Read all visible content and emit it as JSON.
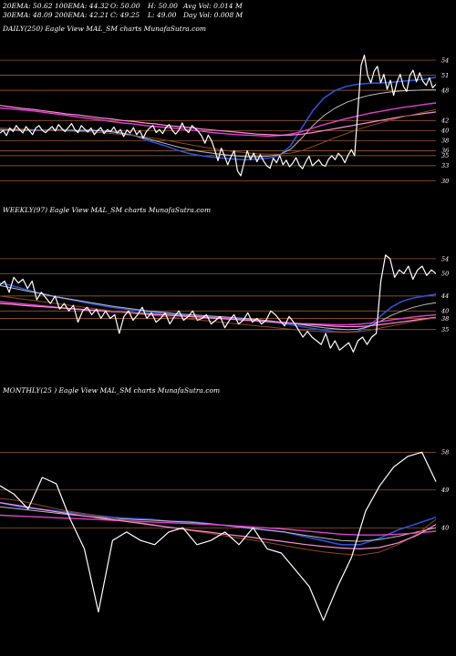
{
  "header": {
    "row1": [
      {
        "key": "ema20",
        "text": "20EMA: 50.62"
      },
      {
        "key": "ema100",
        "text": "100EMA: 44.32"
      },
      {
        "key": "open",
        "text": "O: 50.00"
      },
      {
        "key": "high",
        "text": "H: 50.00"
      },
      {
        "key": "avgvol",
        "text": "Avg Vol: 0.014  M"
      }
    ],
    "row2": [
      {
        "key": "ema30",
        "text": "30EMA: 48.09"
      },
      {
        "key": "ema200",
        "text": "200EMA: 42.21"
      },
      {
        "key": "close",
        "text": "C: 49.25"
      },
      {
        "key": "low",
        "text": "L: 49.00"
      },
      {
        "key": "dayvol",
        "text": "Day Vol: 0.008  M"
      }
    ]
  },
  "colors": {
    "background": "#000000",
    "price": "#ffffff",
    "ema_blue": "#2a52d6",
    "ema_magenta": "#e040d0",
    "ema_pink": "#ff8ad8",
    "ema_gray": "#bbbbbb",
    "ema_brown": "#8b4a1c",
    "grid_orange": "#b8662a"
  },
  "chart_data": [
    {
      "type": "line",
      "title": "DAILY(250) Eagle  View  MAL_SM charts MunafaSutra.com",
      "price_levels": [
        54,
        51,
        48,
        42,
        40,
        38,
        36,
        35,
        33,
        30
      ],
      "ylim": [
        27,
        58
      ],
      "series": [
        {
          "name": "price",
          "color": "#ffffff",
          "values": [
            39.5,
            40,
            39,
            40.5,
            39.8,
            41,
            40.2,
            39.5,
            40.8,
            40,
            39.2,
            40.5,
            41,
            40,
            39.6,
            40.2,
            40.8,
            39.9,
            41.2,
            40.4,
            39.8,
            40.6,
            41.4,
            40.2,
            39.6,
            41,
            40.3,
            39.7,
            40.5,
            39.2,
            40,
            40.6,
            39.4,
            40.2,
            39.8,
            40.7,
            39.5,
            40.2,
            38.8,
            40.1,
            39.5,
            40.6,
            39.2,
            40,
            38.5,
            39.8,
            40.5,
            41,
            39.6,
            40.2,
            39.4,
            40.6,
            41.2,
            40,
            39.3,
            40.1,
            41.5,
            40.2,
            39.6,
            41,
            40.4,
            39.8,
            38.9,
            37.5,
            39.1,
            38,
            36.2,
            34,
            36.5,
            35,
            33.2,
            34.8,
            36,
            32,
            31,
            33.5,
            36,
            34.2,
            35.5,
            33.8,
            35.2,
            34,
            33,
            32.5,
            34.5,
            33.6,
            35,
            33.2,
            34.1,
            32.8,
            33.5,
            34.6,
            33.1,
            32.4,
            33.8,
            34.9,
            33,
            33.6,
            34.2,
            33.2,
            32.9,
            34.3,
            35,
            34.2,
            35.5,
            34.8,
            33.6,
            35.1,
            36.2,
            35,
            44,
            53,
            55,
            51,
            49.5,
            51.8,
            52.8,
            49.5,
            51.2,
            48.2,
            50,
            47,
            49.6,
            51.2,
            48.8,
            47.8,
            51,
            52,
            49.7,
            51.5,
            49.8,
            49,
            50.5,
            48.5,
            49.2
          ]
        },
        {
          "name": "ema20",
          "color": "#2a52d6",
          "values": [
            40.2,
            40.1,
            40.2,
            40,
            40.1,
            40.2,
            40.1,
            40,
            40.1,
            40,
            39.8,
            39.5,
            39,
            38.2,
            37.5,
            36.8,
            36,
            35.4,
            35,
            34.7,
            34.5,
            34.3,
            34.2,
            34.3,
            34.5,
            35,
            37,
            40.5,
            44,
            46.5,
            48,
            48.8,
            49.2,
            49.4,
            49.5,
            49.6,
            49.8,
            50,
            50.2,
            50.6
          ]
        },
        {
          "name": "ema30",
          "color": "#bbbbbb",
          "values": [
            40.1,
            40.1,
            40,
            40.1,
            40.1,
            40,
            40,
            40,
            40,
            39.9,
            39.7,
            39.4,
            39,
            38.5,
            37.9,
            37.3,
            36.7,
            36.2,
            35.8,
            35.5,
            35.2,
            35,
            34.8,
            34.8,
            34.9,
            35.2,
            36.3,
            38.5,
            41,
            43,
            44.5,
            45.6,
            46.4,
            47,
            47.4,
            47.7,
            47.9,
            48,
            48.1,
            48.1
          ]
        },
        {
          "name": "ema50",
          "color": "#e040d0",
          "values": [
            44.5,
            44.3,
            44.1,
            43.9,
            43.6,
            43.3,
            43,
            42.7,
            42.4,
            42.1,
            41.8,
            41.5,
            41.3,
            41,
            40.8,
            40.6,
            40.4,
            40.1,
            39.9,
            39.6,
            39.4,
            39.2,
            39.1,
            39,
            38.9,
            39,
            39.3,
            39.8,
            40.5,
            41.2,
            41.8,
            42.4,
            42.9,
            43.4,
            43.8,
            44.2,
            44.6,
            44.9,
            45.2,
            45.5
          ]
        },
        {
          "name": "ema200",
          "color": "#ff8ad8",
          "values": [
            45,
            44.7,
            44.4,
            44.2,
            43.9,
            43.6,
            43.3,
            43.1,
            42.8,
            42.5,
            42.3,
            42,
            41.8,
            41.5,
            41.3,
            41,
            40.8,
            40.6,
            40.3,
            40.1,
            39.9,
            39.7,
            39.5,
            39.3,
            39.2,
            39.1,
            39.1,
            39.3,
            39.6,
            40,
            40.4,
            40.8,
            41.2,
            41.6,
            42,
            42.4,
            42.8,
            43.1,
            43.4,
            43.7
          ]
        },
        {
          "name": "ema100",
          "color": "#8b4a1c",
          "values": [
            40.5,
            40.4,
            40.3,
            40.2,
            40.1,
            40,
            39.9,
            39.8,
            39.7,
            39.6,
            39.4,
            39.2,
            39,
            38.7,
            38.4,
            38,
            37.6,
            37.2,
            36.8,
            36.4,
            36.1,
            35.8,
            35.6,
            35.4,
            35.3,
            35.3,
            35.5,
            36,
            36.8,
            37.7,
            38.6,
            39.4,
            40.2,
            40.9,
            41.5,
            42.1,
            42.7,
            43.2,
            43.7,
            44.2
          ]
        }
      ]
    },
    {
      "type": "line",
      "title": "WEEKLY(97) Eagle  View  MAL_SM charts MunafaSutra.com",
      "price_levels": [
        54,
        50,
        44,
        40,
        38,
        35
      ],
      "ylim": [
        22,
        64
      ],
      "series": [
        {
          "name": "price",
          "color": "#ffffff",
          "values": [
            47,
            48,
            45,
            49,
            47.5,
            48.5,
            46,
            48,
            43,
            45,
            43.5,
            42,
            44,
            40.5,
            42,
            40,
            41.5,
            37,
            40,
            41,
            39,
            40.5,
            38,
            40,
            38,
            39,
            34,
            38.5,
            40,
            37.5,
            39,
            41,
            38,
            39.5,
            37,
            38,
            39.5,
            36.5,
            38.5,
            40,
            37.5,
            38.5,
            40,
            37.5,
            38,
            39,
            36.5,
            37.5,
            38.5,
            35.5,
            37.5,
            39,
            36.5,
            37.5,
            39.5,
            37,
            38,
            36.5,
            37.5,
            40,
            39,
            37.5,
            36,
            38.5,
            37,
            35,
            33,
            34.5,
            33,
            32,
            31,
            34,
            30,
            32,
            29.5,
            30.5,
            31.5,
            29,
            32,
            33,
            31,
            33,
            34,
            48,
            55,
            54,
            49,
            51,
            50,
            52,
            48.5,
            51,
            52,
            49.5,
            51,
            50
          ]
        },
        {
          "name": "ema20",
          "color": "#2a52d6",
          "values": [
            47.5,
            46.8,
            46,
            45.2,
            44.5,
            43.8,
            43.2,
            42.6,
            42,
            41.5,
            41,
            40.6,
            40.2,
            39.8,
            39.5,
            39.2,
            39,
            38.8,
            38.6,
            38.4,
            38.2,
            38,
            37.8,
            37.5,
            37.2,
            36.8,
            36.3,
            35.8,
            35.3,
            34.8,
            34.4,
            34.3,
            34.5,
            36,
            38.5,
            41,
            42.6,
            43.5,
            44,
            44.5
          ]
        },
        {
          "name": "ema30",
          "color": "#bbbbbb",
          "values": [
            46.8,
            46.2,
            45.6,
            45,
            44.4,
            43.8,
            43.3,
            42.8,
            42.3,
            41.8,
            41.3,
            40.9,
            40.5,
            40.1,
            39.8,
            39.5,
            39.2,
            39,
            38.8,
            38.6,
            38.4,
            38.2,
            38,
            37.7,
            37.4,
            37.1,
            36.7,
            36.3,
            35.9,
            35.5,
            35.2,
            35,
            35.1,
            35.8,
            37.2,
            38.8,
            40,
            41,
            41.7,
            42.2
          ]
        },
        {
          "name": "ema50",
          "color": "#e040d0",
          "values": [
            42.5,
            42.2,
            41.9,
            41.6,
            41.3,
            41,
            40.7,
            40.4,
            40.2,
            40,
            39.8,
            39.6,
            39.4,
            39.2,
            39,
            38.9,
            38.7,
            38.5,
            38.4,
            38.2,
            38,
            37.8,
            37.6,
            37.4,
            37.2,
            37,
            36.8,
            36.6,
            36.5,
            36.4,
            36.3,
            36.3,
            36.4,
            36.7,
            37.1,
            37.6,
            38,
            38.4,
            38.7,
            39
          ]
        },
        {
          "name": "ema200",
          "color": "#ff8ad8",
          "values": [
            42,
            41.8,
            41.5,
            41.3,
            41.1,
            40.9,
            40.7,
            40.5,
            40.3,
            40.1,
            39.9,
            39.7,
            39.5,
            39.3,
            39.1,
            38.9,
            38.7,
            38.5,
            38.3,
            38.1,
            37.9,
            37.7,
            37.5,
            37.3,
            37.1,
            36.9,
            36.7,
            36.5,
            36.3,
            36.1,
            35.9,
            35.8,
            35.8,
            36,
            36.3,
            36.7,
            37.1,
            37.5,
            37.9,
            38.3
          ]
        },
        {
          "name": "ema100",
          "color": "#8b4a1c",
          "values": [
            44,
            43.6,
            43.2,
            42.8,
            42.4,
            42,
            41.6,
            41.2,
            40.8,
            40.4,
            40,
            39.6,
            39.3,
            39,
            38.7,
            38.4,
            38.1,
            37.8,
            37.5,
            37.2,
            36.9,
            36.6,
            36.3,
            36,
            35.7,
            35.4,
            35.1,
            34.8,
            34.6,
            34.4,
            34.3,
            34.3,
            34.4,
            34.8,
            35.4,
            36,
            36.6,
            37.2,
            37.7,
            38.2
          ]
        }
      ]
    },
    {
      "type": "line",
      "title": "MONTHLY(25                    ) Eagle  View  MAL_SM charts MunafaSutra.com",
      "price_levels": [
        58,
        49,
        40
      ],
      "ylim": [
        16,
        70
      ],
      "series": [
        {
          "name": "price",
          "color": "#ffffff",
          "values": [
            50,
            48,
            44.5,
            52,
            50.5,
            42,
            35,
            20,
            37,
            39,
            37,
            36,
            39,
            40,
            36,
            37,
            39,
            36,
            40,
            35,
            34,
            30,
            26,
            18,
            26,
            33,
            44,
            50,
            54.5,
            57,
            58,
            51
          ]
        },
        {
          "name": "ema20",
          "color": "#2a52d6",
          "values": [
            46,
            45,
            44.5,
            44,
            43.5,
            43,
            42.5,
            42.2,
            42,
            41.5,
            41.5,
            41,
            40.5,
            40,
            39.5,
            39,
            38,
            37,
            36,
            36,
            37.5,
            39.5,
            41,
            42.5
          ]
        },
        {
          "name": "ema30",
          "color": "#bbbbbb",
          "values": [
            45,
            44.5,
            44,
            43.5,
            43,
            42.6,
            42.2,
            42,
            41.8,
            41.6,
            41.3,
            41,
            40.5,
            40,
            39.5,
            39,
            38.3,
            37.6,
            37,
            36.8,
            37.2,
            38,
            39,
            40
          ]
        },
        {
          "name": "ema50",
          "color": "#e040d0",
          "values": [
            43,
            42.8,
            42.6,
            42.4,
            42.2,
            42,
            41.8,
            41.6,
            41.4,
            41.2,
            41,
            40.8,
            40.6,
            40.3,
            40,
            39.7,
            39.3,
            38.9,
            38.5,
            38.3,
            38.3,
            38.5,
            38.8,
            39.2
          ]
        },
        {
          "name": "ema100",
          "color": "#8b4a1c",
          "values": [
            47,
            46.5,
            45.5,
            44.5,
            43.7,
            43,
            42.2,
            41.5,
            40.8,
            40.1,
            39.4,
            38.7,
            38,
            37.3,
            36.6,
            35.8,
            35,
            34.3,
            33.8,
            33.5,
            34.2,
            36,
            38.5,
            42
          ]
        },
        {
          "name": "ema200",
          "color": "#ff8ad8",
          "values": [
            46,
            45.3,
            44.5,
            43.8,
            43.1,
            42.5,
            41.9,
            41.3,
            40.7,
            40.1,
            39.5,
            39,
            38.4,
            37.9,
            37.3,
            36.7,
            36.1,
            35.6,
            35.2,
            35,
            35.3,
            36.4,
            38.2,
            40.8
          ]
        }
      ]
    }
  ]
}
